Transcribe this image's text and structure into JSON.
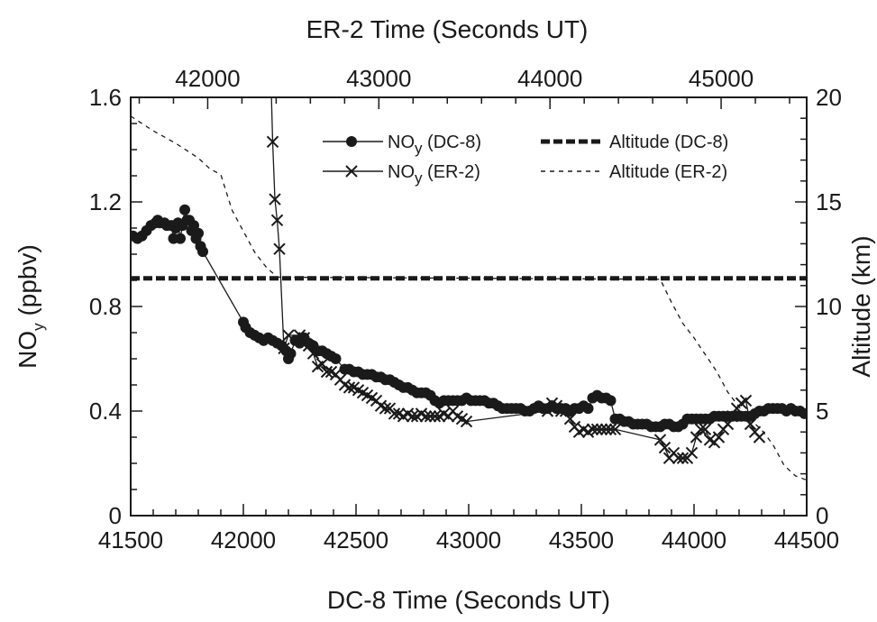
{
  "chart_data": {
    "type": "line",
    "x_bottom": {
      "label": "DC-8 Time (Seconds UT)",
      "range": [
        41500,
        44500
      ],
      "ticks": [
        "41500",
        "42000",
        "42500",
        "43000",
        "43500",
        "44000",
        "44500"
      ],
      "tick_values": [
        41500,
        42000,
        42500,
        43000,
        43500,
        44000,
        44500
      ],
      "minor_step": 100
    },
    "x_top": {
      "label": "ER-2 Time (Seconds UT)",
      "range": [
        41550,
        45500
      ],
      "ticks": [
        "42000",
        "43000",
        "44000",
        "45000"
      ],
      "tick_values": [
        42000,
        43000,
        44000,
        45000
      ],
      "minor_step": 200
    },
    "y_left": {
      "label_main": "NO",
      "label_sub": "y",
      "label_unit": " (ppbv)",
      "range": [
        0,
        1.6
      ],
      "ticks": [
        "0",
        "0.4",
        "0.8",
        "1.2",
        "1.6"
      ],
      "tick_values": [
        0,
        0.4,
        0.8,
        1.2,
        1.6
      ],
      "minor_step": 0.1
    },
    "y_right": {
      "label": "Altitude (km)",
      "range": [
        0,
        20
      ],
      "ticks": [
        "0",
        "5",
        "10",
        "15",
        "20"
      ],
      "tick_values": [
        0,
        5,
        10,
        15,
        20
      ],
      "minor_step": 1
    },
    "legend": {
      "placement": "top",
      "entries": [
        {
          "main": "NO",
          "sub": "y",
          "suffix": " (DC-8)"
        },
        {
          "main": "NO",
          "sub": "y",
          "suffix": " (ER-2)"
        },
        {
          "main": "Altitude (DC-8)"
        },
        {
          "main": "Altitude (ER-2)"
        }
      ]
    },
    "series": [
      {
        "key": "noy_dc8",
        "axis": "left",
        "style": "line-filled-circle",
        "x": [
          41510,
          41530,
          41550,
          41570,
          41590,
          41610,
          41620,
          41630,
          41650,
          41660,
          41680,
          41690,
          41700,
          41710,
          41720,
          41730,
          41740,
          41750,
          41760,
          41770,
          41780,
          41790,
          41800,
          41810,
          41820,
          42000,
          42010,
          42030,
          42050,
          42070,
          42090,
          42110,
          42130,
          42150,
          42170,
          42190,
          42200,
          42210,
          42230,
          42250,
          42270,
          42290,
          42310,
          42330,
          42350,
          42370,
          42390,
          42410,
          42450,
          42470,
          42490,
          42510,
          42530,
          42550,
          42570,
          42590,
          42610,
          42630,
          42650,
          42670,
          42690,
          42710,
          42730,
          42750,
          42770,
          42790,
          42810,
          42830,
          42850,
          42870,
          42890,
          42910,
          42930,
          42950,
          42970,
          42990,
          43010,
          43030,
          43050,
          43070,
          43090,
          43110,
          43130,
          43150,
          43170,
          43190,
          43210,
          43230,
          43250,
          43270,
          43290,
          43310,
          43330,
          43350,
          43370,
          43390,
          43410,
          43430,
          43450,
          43470,
          43490,
          43510,
          43530,
          43550,
          43570,
          43590,
          43610,
          43630,
          43650,
          43670,
          43690,
          43710,
          43730,
          43750,
          43770,
          43790,
          43810,
          43830,
          43850,
          43870,
          43890,
          43910,
          43930,
          43950,
          43970,
          43990,
          44010,
          44030,
          44050,
          44070,
          44090,
          44110,
          44130,
          44150,
          44170,
          44190,
          44210,
          44230,
          44250,
          44270,
          44290,
          44310,
          44330,
          44350,
          44370,
          44390,
          44410,
          44430,
          44450,
          44470,
          44490
        ],
        "y": [
          1.07,
          1.06,
          1.07,
          1.09,
          1.11,
          1.12,
          1.13,
          1.12,
          1.12,
          1.11,
          1.11,
          1.06,
          1.1,
          1.12,
          1.06,
          1.11,
          1.17,
          1.13,
          1.13,
          1.09,
          1.11,
          1.06,
          1.08,
          1.03,
          1.01,
          0.74,
          0.72,
          0.7,
          0.69,
          0.68,
          0.67,
          0.68,
          0.67,
          0.66,
          0.65,
          0.63,
          0.6,
          0.62,
          0.67,
          0.66,
          0.68,
          0.66,
          0.65,
          0.63,
          0.63,
          0.62,
          0.61,
          0.6,
          0.56,
          0.56,
          0.55,
          0.55,
          0.54,
          0.54,
          0.54,
          0.53,
          0.53,
          0.52,
          0.52,
          0.51,
          0.5,
          0.49,
          0.49,
          0.48,
          0.47,
          0.47,
          0.47,
          0.46,
          0.44,
          0.43,
          0.44,
          0.44,
          0.44,
          0.44,
          0.44,
          0.45,
          0.44,
          0.44,
          0.44,
          0.44,
          0.43,
          0.43,
          0.42,
          0.41,
          0.41,
          0.41,
          0.41,
          0.41,
          0.4,
          0.4,
          0.41,
          0.42,
          0.41,
          0.41,
          0.42,
          0.41,
          0.41,
          0.41,
          0.4,
          0.41,
          0.41,
          0.42,
          0.41,
          0.45,
          0.46,
          0.45,
          0.45,
          0.44,
          0.37,
          0.37,
          0.36,
          0.36,
          0.35,
          0.35,
          0.35,
          0.35,
          0.34,
          0.34,
          0.34,
          0.35,
          0.35,
          0.34,
          0.34,
          0.35,
          0.37,
          0.37,
          0.37,
          0.37,
          0.37,
          0.37,
          0.38,
          0.38,
          0.38,
          0.38,
          0.38,
          0.38,
          0.38,
          0.38,
          0.38,
          0.39,
          0.4,
          0.4,
          0.41,
          0.41,
          0.41,
          0.41,
          0.4,
          0.41,
          0.4,
          0.4,
          0.39
        ]
      },
      {
        "key": "noy_er2",
        "axis": "left",
        "style": "line-x",
        "x": [
          42130,
          42140,
          42150,
          42160,
          42180,
          42200,
          42250,
          42270,
          42290,
          42310,
          42330,
          42350,
          42370,
          42390,
          42410,
          42430,
          42450,
          42470,
          42490,
          42510,
          42530,
          42550,
          42570,
          42590,
          42610,
          42630,
          42650,
          42670,
          42690,
          42710,
          42730,
          42750,
          42770,
          42790,
          42810,
          42830,
          42850,
          42870,
          42890,
          42910,
          42930,
          42950,
          42970,
          42990,
          43350,
          43370,
          43390,
          43410,
          43430,
          43450,
          43470,
          43490,
          43510,
          43530,
          43550,
          43570,
          43590,
          43610,
          43630,
          43650,
          43850,
          43870,
          43890,
          43910,
          43930,
          43950,
          43970,
          43990,
          44010,
          44030,
          44050,
          44070,
          44090,
          44110,
          44130,
          44150,
          44170,
          44190,
          44210,
          44230,
          44250,
          44270,
          44290
        ],
        "y": [
          1.43,
          1.21,
          1.13,
          1.02,
          0.64,
          0.69,
          0.69,
          0.68,
          0.65,
          0.62,
          0.57,
          0.58,
          0.55,
          0.55,
          0.54,
          0.52,
          0.5,
          0.49,
          0.49,
          0.48,
          0.47,
          0.46,
          0.45,
          0.44,
          0.42,
          0.41,
          0.41,
          0.39,
          0.39,
          0.38,
          0.39,
          0.38,
          0.38,
          0.39,
          0.38,
          0.38,
          0.38,
          0.38,
          0.39,
          0.38,
          0.4,
          0.38,
          0.37,
          0.36,
          0.4,
          0.43,
          0.42,
          0.4,
          0.4,
          0.37,
          0.34,
          0.32,
          0.33,
          0.32,
          0.33,
          0.33,
          0.33,
          0.33,
          0.33,
          0.33,
          0.29,
          0.26,
          0.22,
          0.24,
          0.22,
          0.22,
          0.22,
          0.24,
          0.3,
          0.33,
          0.33,
          0.29,
          0.28,
          0.3,
          0.33,
          0.35,
          0.38,
          0.41,
          0.43,
          0.44,
          0.35,
          0.32,
          0.3
        ]
      },
      {
        "key": "alt_dc8",
        "axis": "right",
        "style": "thick-dashed",
        "x": [
          41500,
          44500
        ],
        "y": [
          11.35,
          11.35
        ]
      },
      {
        "key": "alt_er2",
        "axis": "right",
        "style": "thin-dashed",
        "x": [
          41500,
          41600,
          41700,
          41800,
          41850,
          41900,
          41950,
          42000,
          42050,
          42100,
          42150,
          43850,
          43900,
          43950,
          44000,
          44050,
          44100,
          44150,
          44200,
          44250,
          44300,
          44350,
          44400,
          44450,
          44500
        ],
        "y": [
          19.1,
          18.4,
          17.8,
          17.1,
          16.6,
          16.3,
          14.6,
          13.6,
          12.6,
          11.9,
          11.4,
          11.3,
          10.2,
          9.2,
          8.5,
          7.7,
          6.9,
          5.9,
          5.2,
          4.6,
          4.1,
          3.4,
          2.4,
          1.9,
          1.7
        ]
      }
    ]
  }
}
